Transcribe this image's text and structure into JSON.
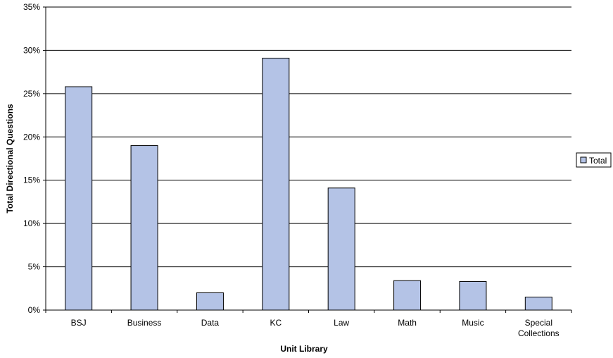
{
  "chart_data": {
    "type": "bar",
    "title": "",
    "xlabel": "Unit Library",
    "ylabel": "Total Directional Questions",
    "categories": [
      "BSJ",
      "Business",
      "Data",
      "KC",
      "Law",
      "Math",
      "Music",
      "Special Collections"
    ],
    "category_lines": [
      [
        "BSJ"
      ],
      [
        "Business"
      ],
      [
        "Data"
      ],
      [
        "KC"
      ],
      [
        "Law"
      ],
      [
        "Math"
      ],
      [
        "Music"
      ],
      [
        "Special",
        "Collections"
      ]
    ],
    "series": [
      {
        "name": "Total",
        "values": [
          25.8,
          19.0,
          2.0,
          29.1,
          14.1,
          3.4,
          3.3,
          1.5
        ],
        "color": "#b4c3e6"
      }
    ],
    "ylim": [
      0,
      35
    ],
    "yticks": [
      0,
      5,
      10,
      15,
      20,
      25,
      30,
      35
    ],
    "ytick_labels": [
      "0%",
      "5%",
      "10%",
      "15%",
      "20%",
      "25%",
      "30%",
      "35%"
    ],
    "grid": true,
    "legend": {
      "position": "right",
      "entries": [
        "Total"
      ]
    }
  }
}
